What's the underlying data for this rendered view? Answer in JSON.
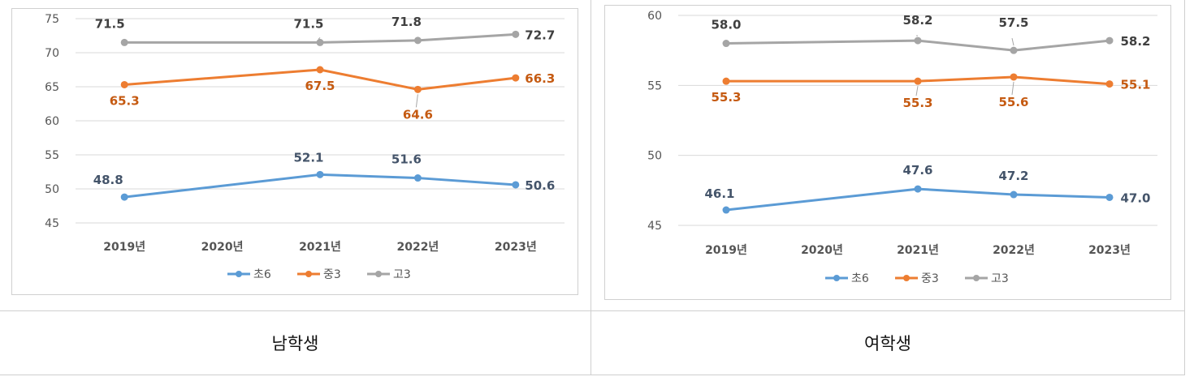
{
  "captions": [
    "남학생",
    "여학생"
  ],
  "colors": {
    "초6": "#5b9bd5",
    "중3": "#ed7d31",
    "고3": "#a5a5a5",
    "label_blue": "#44546a",
    "label_orange": "#c55a11",
    "label_gray": "#404040"
  },
  "chart_data": [
    {
      "type": "line",
      "title": "",
      "categories": [
        "2019년",
        "2020년",
        "2021년",
        "2022년",
        "2023년"
      ],
      "ylim": [
        45,
        75
      ],
      "yticks": [
        45,
        50,
        55,
        60,
        65,
        70,
        75
      ],
      "grid": true,
      "legend": "bottom",
      "series": [
        {
          "name": "초6",
          "values": [
            48.8,
            null,
            52.1,
            51.6,
            50.6
          ],
          "labels": [
            "48.8",
            null,
            "52.1",
            "51.6",
            "50.6"
          ]
        },
        {
          "name": "중3",
          "values": [
            65.3,
            null,
            67.5,
            64.6,
            66.3
          ],
          "labels": [
            "65.3",
            null,
            "67.5",
            "64.6",
            "66.3"
          ]
        },
        {
          "name": "고3",
          "values": [
            71.5,
            null,
            71.5,
            71.8,
            72.7
          ],
          "labels": [
            "71.5",
            null,
            "71.5",
            "71.8",
            "72.7"
          ]
        }
      ]
    },
    {
      "type": "line",
      "title": "",
      "categories": [
        "2019년",
        "2020년",
        "2021년",
        "2022년",
        "2023년"
      ],
      "ylim": [
        45,
        60
      ],
      "yticks": [
        45,
        50,
        55,
        60
      ],
      "grid": true,
      "legend": "bottom",
      "series": [
        {
          "name": "초6",
          "values": [
            46.1,
            null,
            47.6,
            47.2,
            47.0
          ],
          "labels": [
            "46.1",
            null,
            "47.6",
            "47.2",
            "47.0"
          ]
        },
        {
          "name": "중3",
          "values": [
            55.3,
            null,
            55.3,
            55.6,
            55.1
          ],
          "labels": [
            "55.3",
            null,
            "55.3",
            "55.6",
            "55.1"
          ]
        },
        {
          "name": "고3",
          "values": [
            58.0,
            null,
            58.2,
            57.5,
            58.2
          ],
          "labels": [
            "58.0",
            null,
            "58.2",
            "57.5",
            "58.2"
          ]
        }
      ]
    }
  ]
}
